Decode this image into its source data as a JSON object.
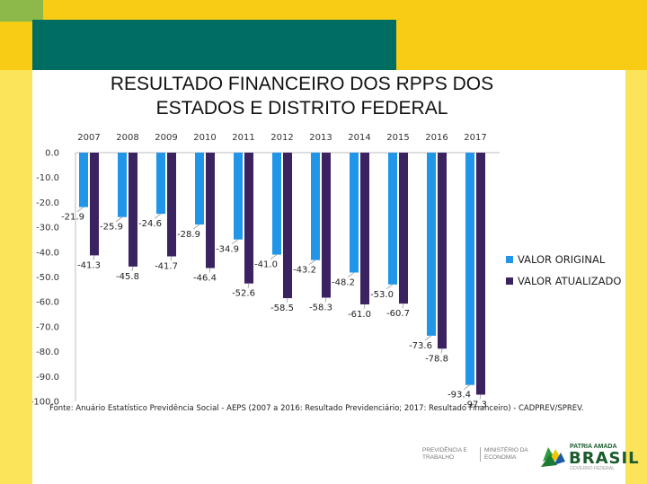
{
  "slide": {
    "title_line1": "RESULTADO FINANCEIRO DOS RPPS DOS",
    "title_line2": "ESTADOS E DISTRITO FEDERAL",
    "source": "Fonte: Anuário Estatístico Previdência Social - AEPS (2007 a 2016: Resultado Previdenciário; 2017: Resultado Financeiro) - CADPREV/SPREV."
  },
  "colors": {
    "series_original": "#2196e8",
    "series_atualizado": "#3b2260",
    "top_yellow": "#f8cc14",
    "teal": "#006d63",
    "green": "#8db94a"
  },
  "footer": {
    "ministry_left_line1": "PREVIDÊNCIA E",
    "ministry_left_line2": "TRABALHO",
    "ministry_right_line1": "MINISTÉRIO DA",
    "ministry_right_line2": "ECONOMIA",
    "brand_tagline": "PATRIA AMADA",
    "brand_name": "BRASIL",
    "brand_sub": "GOVERNO FEDERAL"
  },
  "chart_data": {
    "type": "bar",
    "title": "RESULTADO FINANCEIRO DOS RPPS DOS ESTADOS E DISTRITO FEDERAL",
    "categories": [
      "2007",
      "2008",
      "2009",
      "2010",
      "2011",
      "2012",
      "2013",
      "2014",
      "2015",
      "2016",
      "2017"
    ],
    "series": [
      {
        "name": "VALOR ORIGINAL",
        "values": [
          -21.9,
          -25.9,
          -24.6,
          -28.9,
          -34.9,
          -41.0,
          -43.2,
          -48.2,
          -53.0,
          -73.6,
          -93.4
        ]
      },
      {
        "name": "VALOR ATUALIZADO",
        "values": [
          -41.3,
          -45.8,
          -41.7,
          -46.4,
          -52.6,
          -58.5,
          -58.3,
          -61.0,
          -60.7,
          -78.8,
          -97.3
        ]
      }
    ],
    "value_labels": {
      "VALOR ORIGINAL": [
        "-21.9",
        "-25.9",
        "-24.6",
        "-28.9",
        "-34.9",
        "-41.0",
        "-43.2",
        "-48.2",
        "-53.0",
        "-73.6",
        "-93.4"
      ],
      "VALOR ATUALIZADO": [
        "-41.3",
        "-45.8",
        "-41.7",
        "-46.4",
        "-52.6",
        "-58.5",
        "-58.3",
        "-61.0",
        "-60.7",
        "-78.8",
        "-97.3"
      ]
    },
    "y_tick_labels": [
      "0.0",
      "-10.0",
      "-20.0",
      "-30.0",
      "-40.0",
      "-50.0",
      "-60.0",
      "-70.0",
      "-80.0",
      "-90.0",
      "-100.0"
    ],
    "xlabel": "",
    "ylabel": "",
    "ylim": [
      -100,
      0
    ],
    "grid": false,
    "legend_position": "right"
  }
}
